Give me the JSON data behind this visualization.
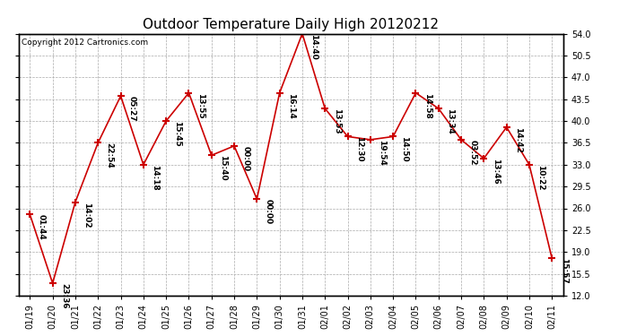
{
  "title": "Outdoor Temperature Daily High 20120212",
  "copyright": "Copyright 2012 Cartronics.com",
  "dates": [
    "01/19",
    "01/20",
    "01/21",
    "01/22",
    "01/23",
    "01/24",
    "01/25",
    "01/26",
    "01/27",
    "01/28",
    "01/29",
    "01/30",
    "01/31",
    "02/01",
    "02/02",
    "02/03",
    "02/04",
    "02/05",
    "02/06",
    "02/07",
    "02/08",
    "02/09",
    "02/10",
    "02/11"
  ],
  "values": [
    25.0,
    14.0,
    27.0,
    36.5,
    44.0,
    33.0,
    40.0,
    44.5,
    34.5,
    36.0,
    27.5,
    44.5,
    54.0,
    42.0,
    37.5,
    37.0,
    37.5,
    44.5,
    42.0,
    37.0,
    34.0,
    39.0,
    33.0,
    18.0
  ],
  "labels": [
    "01:44",
    "23:36",
    "14:02",
    "22:54",
    "05:27",
    "14:18",
    "15:45",
    "13:55",
    "15:40",
    "00:00",
    "00:00",
    "16:14",
    "14:40",
    "13:53",
    "12:30",
    "19:54",
    "14:50",
    "14:58",
    "13:34",
    "03:52",
    "13:46",
    "14:42",
    "10:22",
    "15:57"
  ],
  "ylim": [
    12.0,
    54.0
  ],
  "yticks": [
    12.0,
    15.5,
    19.0,
    22.5,
    26.0,
    29.5,
    33.0,
    36.5,
    40.0,
    43.5,
    47.0,
    50.5,
    54.0
  ],
  "line_color": "#cc0000",
  "marker_color": "#cc0000",
  "bg_color": "#ffffff",
  "grid_color": "#aaaaaa",
  "title_fontsize": 11,
  "tick_fontsize": 7,
  "label_fontsize": 6.5,
  "copyright_fontsize": 6.5
}
